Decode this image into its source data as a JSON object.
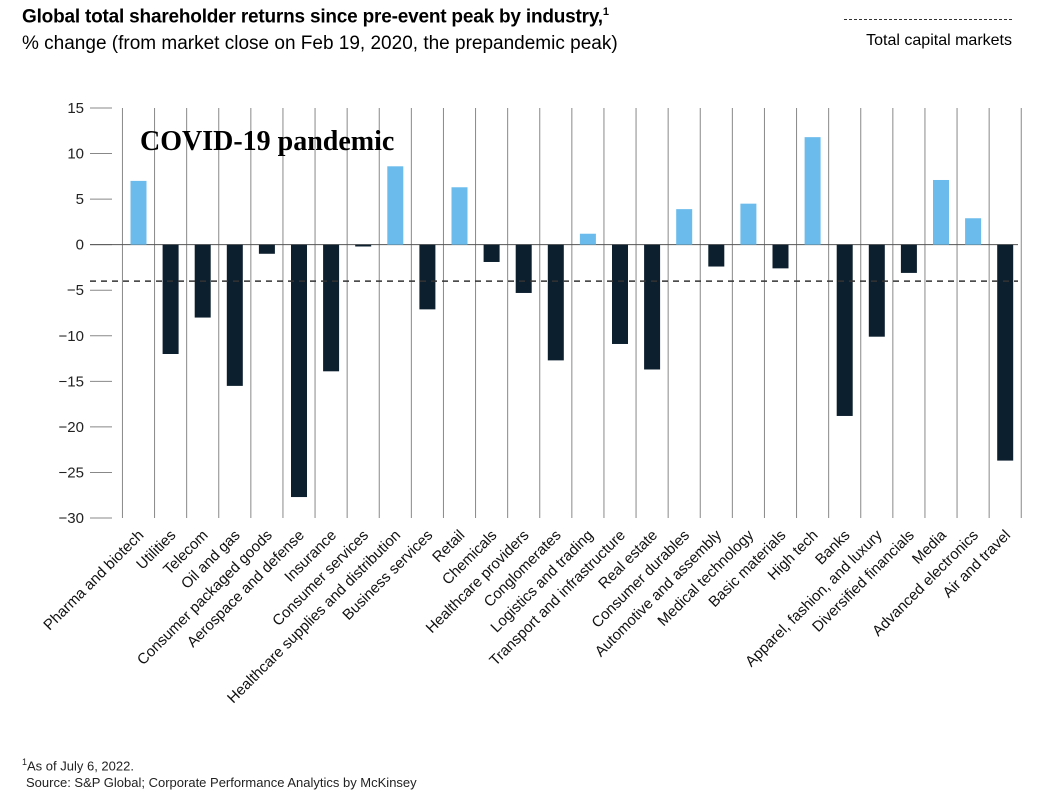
{
  "header": {
    "title": "Global total shareholder returns since pre-event peak by industry,",
    "title_footnote_marker": "1",
    "subtitle": "% change (from market close on Feb 19, 2020, the prepandemic peak)"
  },
  "legend": {
    "reference_label": "Total capital markets"
  },
  "footer": {
    "note_marker": "1",
    "note": "As of July 6, 2022.",
    "source": "Source: S&P Global; Corporate Performance Analytics by McKinsey"
  },
  "colors": {
    "positive": "#6bbcec",
    "negative": "#0c1f2e",
    "grid": "#888888",
    "reference": "#333333"
  },
  "chart_data": {
    "type": "bar",
    "title": "Global total shareholder returns since pre-event peak by industry,",
    "subtitle": "% change (from market close on Feb 19, 2020, the prepandemic peak)",
    "annotation": "COVID-19 pandemic",
    "ylim": [
      -30,
      15
    ],
    "yticks": [
      15,
      10,
      5,
      0,
      -5,
      -10,
      -15,
      -20,
      -25,
      -30
    ],
    "ytick_labels": [
      "15",
      "10",
      "5",
      "0",
      "−5",
      "−10",
      "−15",
      "−20",
      "−25",
      "−30"
    ],
    "reference_line": {
      "label": "Total capital markets",
      "value": -4
    },
    "grid": true,
    "legend": "top-right",
    "categories": [
      "Pharma and biotech",
      "Utilities",
      "Telecom",
      "Oil and gas",
      "Consumer packaged goods",
      "Aerospace and defense",
      "Insurance",
      "Consumer services",
      "Healthcare supplies and distribution",
      "Business services",
      "Retail",
      "Chemicals",
      "Healthcare providers",
      "Conglomerates",
      "Logistics and trading",
      "Transport and infrastructure",
      "Real estate",
      "Consumer durables",
      "Automotive and assembly",
      "Medical technology",
      "Basic materials",
      "High tech",
      "Banks",
      "Apparel, fashion, and luxury",
      "Diversified financials",
      "Media",
      "Advanced electronics",
      "Air and travel"
    ],
    "values": [
      7,
      -12,
      -8,
      -15.5,
      -1,
      -27.7,
      -13.9,
      -0.2,
      8.6,
      -7.1,
      6.3,
      -1.9,
      -5.3,
      -12.7,
      1.2,
      -10.9,
      -13.7,
      3.9,
      -2.4,
      4.5,
      -2.6,
      11.8,
      -18.8,
      -10.1,
      -3.1,
      7.1,
      2.9,
      -23.7
    ]
  }
}
